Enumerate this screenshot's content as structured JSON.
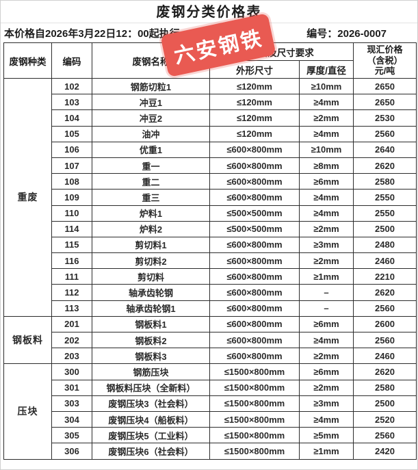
{
  "page": {
    "title": "废钢分类价格表",
    "effective_text": "本价格自2026年3月22日12：00起执行",
    "doc_number": "编号：2026-0007"
  },
  "stamp": {
    "text": "六安钢铁",
    "color": "#e95a52"
  },
  "colors": {
    "stamp_red": "#e95a52",
    "table_border": "#2b2b2b",
    "background": "#ffffff"
  },
  "table": {
    "headers": {
      "category": "废钢种类",
      "code": "编码",
      "name": "废钢名称",
      "spec_group": "规格及尺寸要求",
      "outer_size": "外形尺寸",
      "thickness_diameter": "厚度/直径",
      "price": "现汇价格\n（含税）\n元/吨"
    },
    "groups": [
      {
        "category": "重废",
        "rows": [
          {
            "code": "102",
            "name": "钢筋切粒1",
            "size": "≤120mm",
            "thickness": "≥10mm",
            "price": "2650"
          },
          {
            "code": "103",
            "name": "冲豆1",
            "size": "≤120mm",
            "thickness": "≥4mm",
            "price": "2650"
          },
          {
            "code": "104",
            "name": "冲豆2",
            "size": "≤120mm",
            "thickness": "≥2mm",
            "price": "2530"
          },
          {
            "code": "105",
            "name": "油冲",
            "size": "≤120mm",
            "thickness": "≥4mm",
            "price": "2560"
          },
          {
            "code": "106",
            "name": "优重1",
            "size": "≤600×800mm",
            "thickness": "≥10mm",
            "price": "2640"
          },
          {
            "code": "107",
            "name": "重一",
            "size": "≤600×800mm",
            "thickness": "≥8mm",
            "price": "2620"
          },
          {
            "code": "108",
            "name": "重二",
            "size": "≤600×800mm",
            "thickness": "≥6mm",
            "price": "2580"
          },
          {
            "code": "109",
            "name": "重三",
            "size": "≤600×800mm",
            "thickness": "≥4mm",
            "price": "2550"
          },
          {
            "code": "110",
            "name": "炉料1",
            "size": "≤500×500mm",
            "thickness": "≥4mm",
            "price": "2550"
          },
          {
            "code": "114",
            "name": "炉料2",
            "size": "≤500×500mm",
            "thickness": "≥2mm",
            "price": "2500"
          },
          {
            "code": "115",
            "name": "剪切料1",
            "size": "≤600×800mm",
            "thickness": "≥3mm",
            "price": "2480"
          },
          {
            "code": "116",
            "name": "剪切料2",
            "size": "≤600×800mm",
            "thickness": "≥2mm",
            "price": "2460"
          },
          {
            "code": "111",
            "name": "剪切料",
            "size": "≤600×800mm",
            "thickness": "≥1mm",
            "price": "2210"
          },
          {
            "code": "112",
            "name": "轴承齿轮钢",
            "size": "≤600×800mm",
            "thickness": "–",
            "price": "2620"
          },
          {
            "code": "113",
            "name": "轴承齿轮钢1",
            "size": "≤600×800mm",
            "thickness": "–",
            "price": "2560"
          }
        ]
      },
      {
        "category": "钢板料",
        "rows": [
          {
            "code": "201",
            "name": "钢板料1",
            "size": "≤600×800mm",
            "thickness": "≥6mm",
            "price": "2600"
          },
          {
            "code": "202",
            "name": "钢板料2",
            "size": "≤600×800mm",
            "thickness": "≥4mm",
            "price": "2560"
          },
          {
            "code": "203",
            "name": "钢板料3",
            "size": "≤600×800mm",
            "thickness": "≥2mm",
            "price": "2460"
          }
        ]
      },
      {
        "category": "压块",
        "rows": [
          {
            "code": "300",
            "name": "钢筋压块",
            "size": "≤1500×800mm",
            "thickness": "≥6mm",
            "price": "2620"
          },
          {
            "code": "301",
            "name": "钢板料压块（全新料）",
            "size": "≤1500×800mm",
            "thickness": "≥2mm",
            "price": "2580"
          },
          {
            "code": "303",
            "name": "废钢压块3（社会料）",
            "size": "≤1500×800mm",
            "thickness": "≥3mm",
            "price": "2500"
          },
          {
            "code": "304",
            "name": "废钢压块4（船板料）",
            "size": "≤1500×800mm",
            "thickness": "≥4mm",
            "price": "2520"
          },
          {
            "code": "305",
            "name": "废钢压块5（工业料）",
            "size": "≤1500×800mm",
            "thickness": "≥5mm",
            "price": "2560"
          },
          {
            "code": "306",
            "name": "废钢压块6（社会料）",
            "size": "≤1500×800mm",
            "thickness": "≥1mm",
            "price": "2420"
          }
        ]
      }
    ]
  }
}
